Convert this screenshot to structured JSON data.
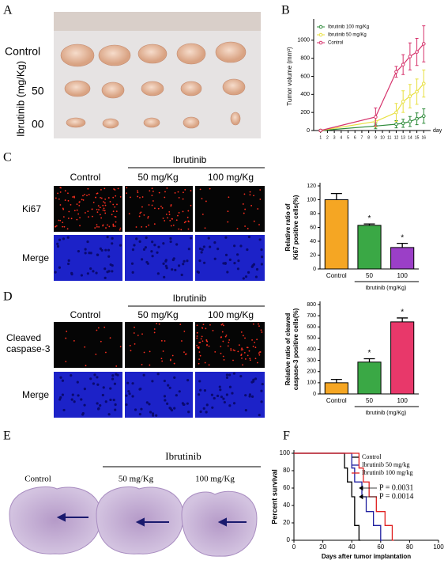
{
  "panels": {
    "A": {
      "letter": "A",
      "row1": "Control",
      "row2": "50",
      "row3": "00",
      "group": "Ibrutinib (mg/Kg)"
    },
    "B": {
      "letter": "B"
    },
    "C": {
      "letter": "C",
      "col1": "Control",
      "group": "Ibrutinib",
      "col2": "50 mg/Kg",
      "col3": "100 mg/Kg",
      "row1": "Ki67",
      "row2": "Merge"
    },
    "D": {
      "letter": "D",
      "col1": "Control",
      "group": "Ibrutinib",
      "col2": "50 mg/Kg",
      "col3": "100 mg/Kg",
      "row1": [
        "Cleaved",
        "caspase-3"
      ],
      "row2": "Merge"
    },
    "E": {
      "letter": "E",
      "col1": "Control",
      "group": "Ibrutinib",
      "col2": "50 mg/Kg",
      "col3": "100 mg/Kg"
    },
    "F": {
      "letter": "F"
    }
  },
  "chart_data": [
    {
      "type": "line",
      "ylabel": "Tumor volume (mm³)",
      "xlabel": "day",
      "x": [
        1,
        9,
        12,
        13,
        14,
        15,
        16
      ],
      "xlim": [
        0,
        17
      ],
      "xticks": [
        1,
        2,
        3,
        4,
        5,
        6,
        7,
        8,
        9,
        10,
        11,
        12,
        13,
        14,
        15,
        16
      ],
      "ylim": [
        0,
        1200
      ],
      "yticks": [
        0,
        200,
        400,
        600,
        800,
        1000
      ],
      "legend": "upper left",
      "series": [
        {
          "name": "Ibrutinib 100 mg/Kg",
          "color": "#2e8b3a",
          "values": [
            0,
            50,
            70,
            80,
            100,
            130,
            160
          ],
          "errors": [
            10,
            30,
            40,
            45,
            55,
            65,
            80
          ]
        },
        {
          "name": "Ibrutinib 50 mg/Kg",
          "color": "#e8e040",
          "values": [
            0,
            100,
            200,
            320,
            380,
            430,
            520
          ],
          "errors": [
            10,
            60,
            100,
            120,
            130,
            140,
            150
          ]
        },
        {
          "name": "Control",
          "color": "#d6336c",
          "values": [
            0,
            150,
            650,
            730,
            820,
            870,
            960
          ],
          "errors": [
            10,
            100,
            60,
            110,
            150,
            150,
            200
          ]
        }
      ]
    },
    {
      "type": "bar",
      "ylabel": [
        "Relative ratio of",
        "Ki67 positive cells(%)"
      ],
      "group_label": "Ibrutinib (mg/Kg)",
      "categories": [
        "Control",
        "50",
        "100"
      ],
      "values": [
        100,
        63,
        31
      ],
      "errors": [
        9,
        2,
        6
      ],
      "colors": [
        "#f5a623",
        "#3aa845",
        "#9b3fc7"
      ],
      "significance": [
        null,
        "*",
        "*"
      ],
      "ylim": [
        0,
        120
      ],
      "yticks": [
        0,
        20,
        40,
        60,
        80,
        100,
        120
      ]
    },
    {
      "type": "bar",
      "ylabel": [
        "Relative ratio of cleaved",
        "caspase-3 positive cells(%)"
      ],
      "group_label": "Ibrutinib  (mg/Kg)",
      "categories": [
        "Control",
        "50",
        "100"
      ],
      "values": [
        100,
        285,
        645
      ],
      "errors": [
        30,
        30,
        35
      ],
      "colors": [
        "#f5a623",
        "#3aa845",
        "#e8386a"
      ],
      "significance": [
        null,
        "*",
        "*"
      ],
      "ylim": [
        0,
        800
      ],
      "yticks": [
        0,
        100,
        200,
        300,
        400,
        500,
        600,
        700,
        800
      ]
    },
    {
      "type": "step",
      "ylabel": "Percent survival",
      "xlabel": "Days after tumor implantation",
      "xlim": [
        0,
        100
      ],
      "xticks": [
        0,
        20,
        40,
        60,
        80,
        100
      ],
      "ylim": [
        0,
        100
      ],
      "yticks": [
        0,
        20,
        40,
        60,
        80,
        100
      ],
      "legend": "upper right",
      "annotations": [
        "P = 0.0031",
        "P = 0.0014"
      ],
      "series": [
        {
          "name": "Control",
          "color": "#000000",
          "x": [
            0,
            35,
            37,
            40,
            42,
            45
          ],
          "values": [
            100,
            83,
            67,
            50,
            17,
            0
          ]
        },
        {
          "name": "Ibrutinib 50 mg/kg",
          "color": "#2020a0",
          "x": [
            0,
            40,
            42,
            47,
            50,
            55,
            60
          ],
          "values": [
            100,
            83,
            67,
            50,
            33,
            17,
            0
          ]
        },
        {
          "name": "Ibrutinib 100 mg/kg",
          "color": "#e02020",
          "x": [
            0,
            45,
            48,
            52,
            57,
            63,
            68
          ],
          "values": [
            100,
            83,
            67,
            50,
            33,
            17,
            0
          ]
        }
      ]
    }
  ]
}
